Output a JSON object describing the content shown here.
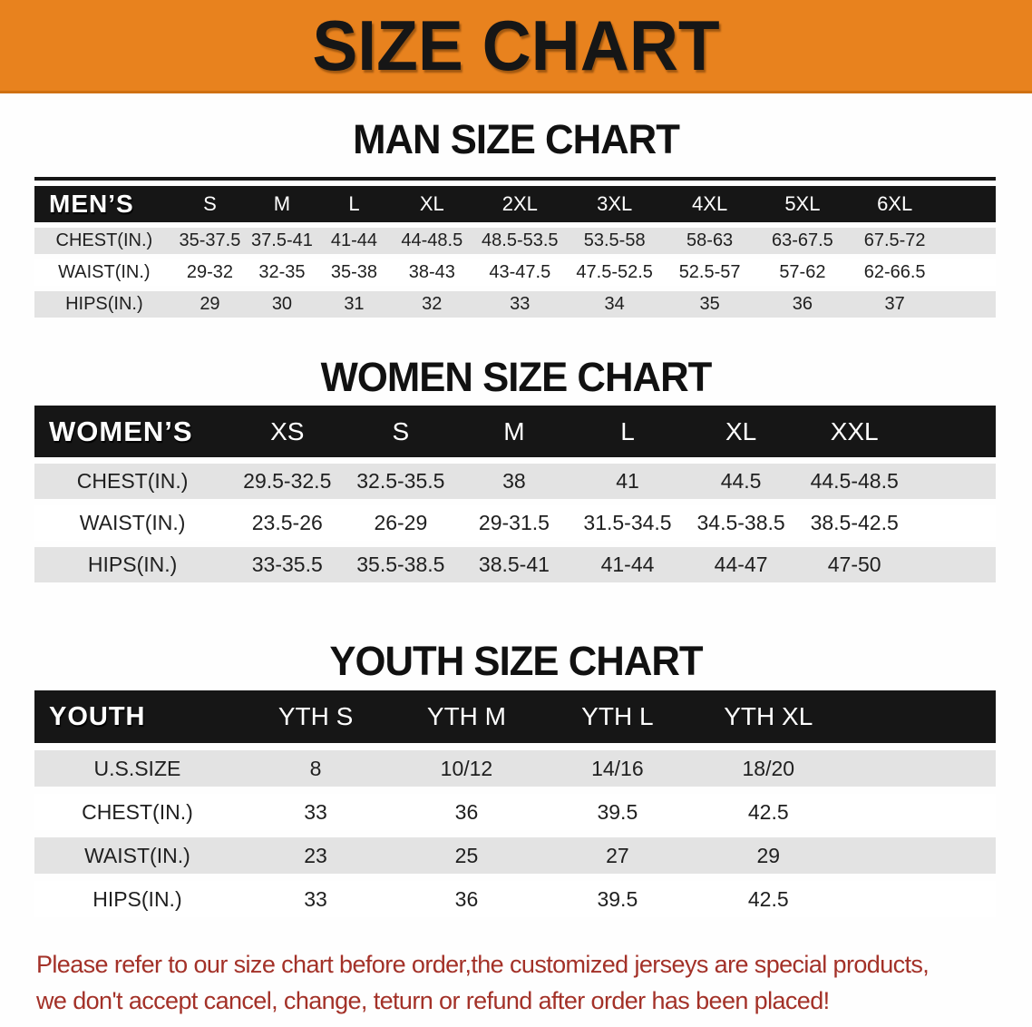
{
  "banner": {
    "title": "SIZE CHART",
    "bg_color": "#E8821E",
    "border_color": "#CF7012",
    "text_color": "#161616"
  },
  "sections": [
    {
      "heading": "MAN SIZE CHART",
      "table": {
        "corner": "MEN’S",
        "columns": [
          "S",
          "M",
          "L",
          "XL",
          "2XL",
          "3XL",
          "4XL",
          "5XL",
          "6XL"
        ],
        "rows": [
          {
            "label": "CHEST(IN.)",
            "values": [
              "35-37.5",
              "37.5-41",
              "41-44",
              "44-48.5",
              "48.5-53.5",
              "53.5-58",
              "58-63",
              "63-67.5",
              "67.5-72"
            ]
          },
          {
            "label": "WAIST(IN.)",
            "values": [
              "29-32",
              "32-35",
              "35-38",
              "38-43",
              "43-47.5",
              "47.5-52.5",
              "52.5-57",
              "57-62",
              "62-66.5"
            ]
          },
          {
            "label": "HIPS(IN.)",
            "values": [
              "29",
              "30",
              "31",
              "32",
              "33",
              "34",
              "35",
              "36",
              "37"
            ]
          }
        ]
      }
    },
    {
      "heading": "WOMEN SIZE CHART",
      "table": {
        "corner": "WOMEN’S",
        "columns": [
          "XS",
          "S",
          "M",
          "L",
          "XL",
          "XXL"
        ],
        "rows": [
          {
            "label": "CHEST(IN.)",
            "values": [
              "29.5-32.5",
              "32.5-35.5",
              "38",
              "41",
              "44.5",
              "44.5-48.5"
            ]
          },
          {
            "label": "WAIST(IN.)",
            "values": [
              "23.5-26",
              "26-29",
              "29-31.5",
              "31.5-34.5",
              "34.5-38.5",
              "38.5-42.5"
            ]
          },
          {
            "label": "HIPS(IN.)",
            "values": [
              "33-35.5",
              "35.5-38.5",
              "38.5-41",
              "41-44",
              "44-47",
              "47-50"
            ]
          }
        ]
      }
    },
    {
      "heading": "YOUTH SIZE CHART",
      "table": {
        "corner": "YOUTH",
        "columns": [
          "YTH S",
          "YTH M",
          "YTH L",
          "YTH XL"
        ],
        "rows": [
          {
            "label": "U.S.SIZE",
            "values": [
              "8",
              "10/12",
              "14/16",
              "18/20"
            ]
          },
          {
            "label": "CHEST(IN.)",
            "values": [
              "33",
              "36",
              "39.5",
              "42.5"
            ]
          },
          {
            "label": "WAIST(IN.)",
            "values": [
              "23",
              "25",
              "27",
              "29"
            ]
          },
          {
            "label": "HIPS(IN.)",
            "values": [
              "33",
              "36",
              "39.5",
              "42.5"
            ]
          }
        ]
      }
    }
  ],
  "footer": {
    "line1": "Please refer to our size chart before order,the customized jerseys are special products,",
    "line2": "we don't accept cancel, change, teturn or refund after order has been placed!",
    "text_color": "#A33128"
  },
  "colors": {
    "header_bar_black": "#161616",
    "row_gray": "#E3E3E3",
    "row_white": "#FFFFFF",
    "table_text": "#1F1F1F"
  }
}
